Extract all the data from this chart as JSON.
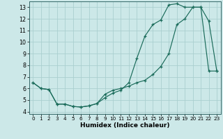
{
  "xlabel": "Humidex (Indice chaleur)",
  "bg_color": "#cce8e8",
  "grid_color": "#aacfcf",
  "line_color": "#1a6b5a",
  "xlim": [
    -0.5,
    23.5
  ],
  "ylim": [
    3.8,
    13.5
  ],
  "xticks": [
    0,
    1,
    2,
    3,
    4,
    5,
    6,
    7,
    8,
    9,
    10,
    11,
    12,
    13,
    14,
    15,
    16,
    17,
    18,
    19,
    20,
    21,
    22,
    23
  ],
  "yticks": [
    4,
    5,
    6,
    7,
    8,
    9,
    10,
    11,
    12,
    13
  ],
  "curve1_x": [
    0,
    1,
    2,
    3,
    4,
    5,
    6,
    7,
    8,
    9,
    10,
    11,
    12,
    13,
    14,
    15,
    16,
    17,
    18,
    19,
    20,
    21,
    22,
    23
  ],
  "curve1_y": [
    6.5,
    6.0,
    5.9,
    4.65,
    4.65,
    4.45,
    4.4,
    4.5,
    4.7,
    5.2,
    5.6,
    5.85,
    6.5,
    8.6,
    10.5,
    11.5,
    11.9,
    13.2,
    13.3,
    13.0,
    13.0,
    13.0,
    11.8,
    7.5
  ],
  "curve2_x": [
    0,
    1,
    2,
    3,
    4,
    5,
    6,
    7,
    8,
    9,
    10,
    11,
    12,
    13,
    14,
    15,
    16,
    17,
    18,
    19,
    20,
    21,
    22,
    23
  ],
  "curve2_y": [
    6.5,
    6.0,
    5.9,
    4.65,
    4.65,
    4.45,
    4.4,
    4.5,
    4.7,
    5.5,
    5.85,
    6.0,
    6.2,
    6.5,
    6.7,
    7.2,
    7.9,
    9.0,
    11.5,
    12.0,
    13.0,
    13.0,
    7.5,
    7.5
  ]
}
